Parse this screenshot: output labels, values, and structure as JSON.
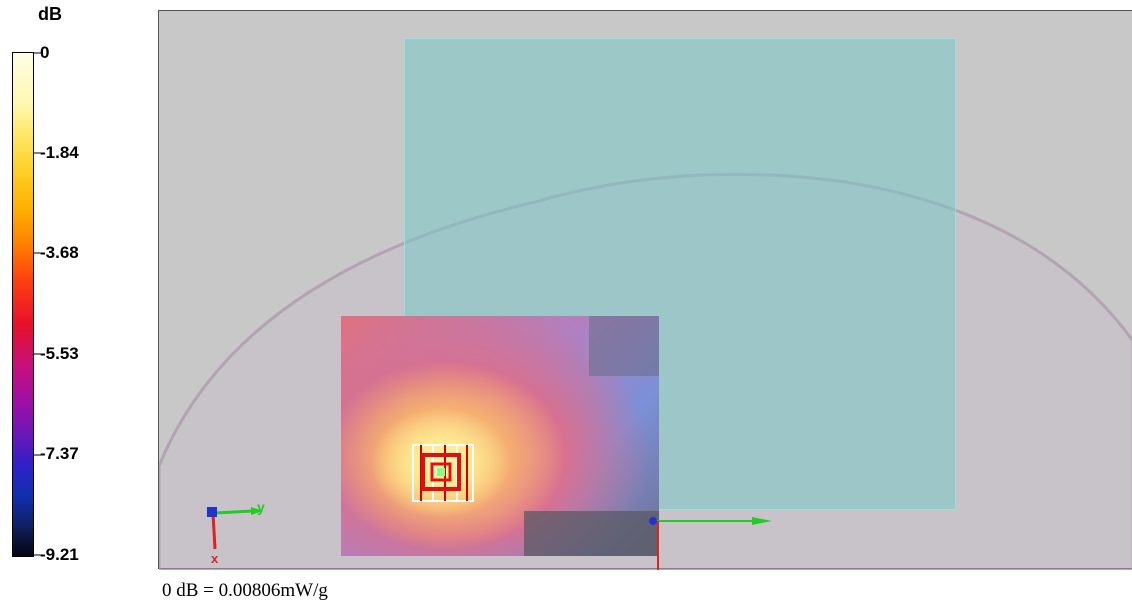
{
  "legend": {
    "unit": "dB",
    "ticks": [
      "0",
      "-1.84",
      "-3.68",
      "-5.53",
      "-7.37",
      "-9.21"
    ]
  },
  "axes_gizmo": {
    "y_label": "y",
    "x_label": "x"
  },
  "footer": {
    "reference": "0 dB = 0.00806mW/g"
  },
  "colors": {
    "viewport_bg": "#c8c8c8",
    "plate": "#78c8c8",
    "axis_y": "#22cc22",
    "axis_x": "#dd2222",
    "axis_z": "#2233cc"
  }
}
